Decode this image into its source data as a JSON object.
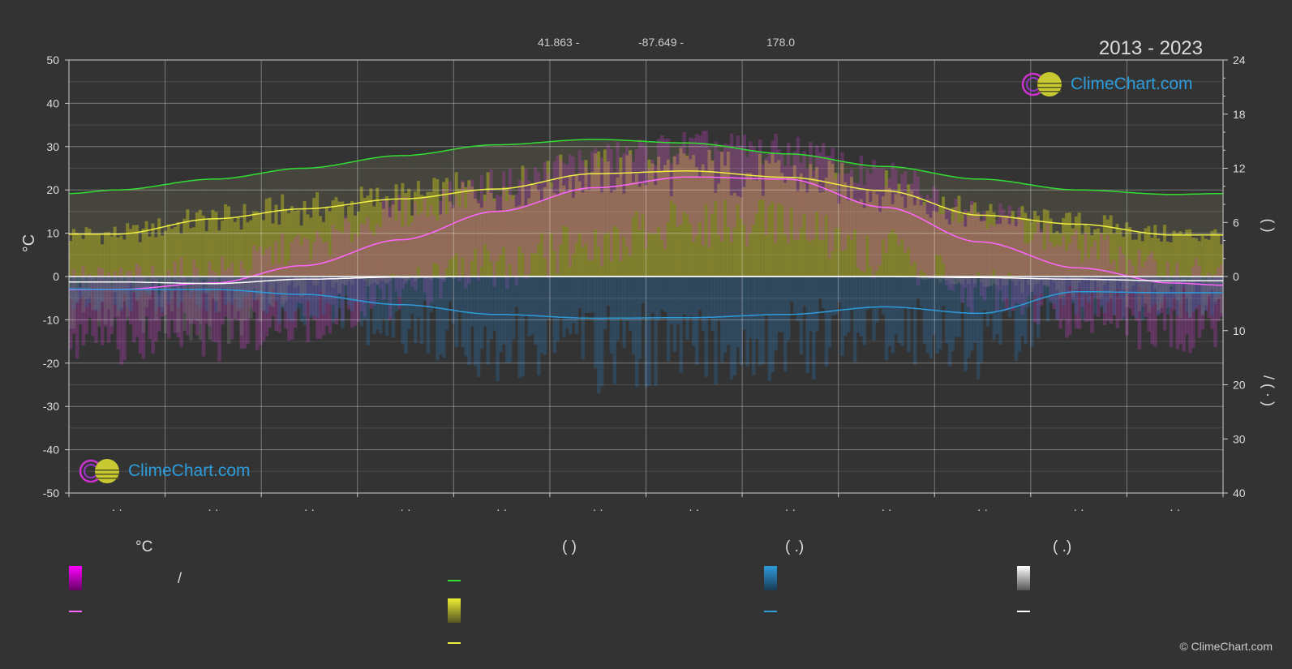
{
  "header": {
    "lat": "41.863 -",
    "lon": "-87.649 -",
    "elev": "178.0",
    "years": "2013 - 2023"
  },
  "brand": {
    "logo_text": "ClimeChart.com",
    "copyright": "© ClimeChart.com"
  },
  "colors": {
    "background": "#333333",
    "daylight": "#33dd33",
    "sunshine": "#eeee44",
    "temp_mean": "#ff66ff",
    "precip": "#2d9cdb",
    "snow": "#ffffff",
    "sunshine_fill": "#8a8a2a",
    "temp_band": "#c040c0",
    "precip_bars": "#2a6aa0",
    "snow_bars": "#777777"
  },
  "legend": {
    "temp_header": "°C",
    "sun_header": "(          )",
    "rain_header": "(   .)",
    "snow_header": "(   .)",
    "slash": "/"
  },
  "chart_data": {
    "type": "area",
    "months": [
      "· ·",
      "· ·",
      "· ·",
      "· ·",
      "· ·",
      "· ·",
      "· ·",
      "· ·",
      "· ·",
      "· ·",
      "· ·",
      "· ·"
    ],
    "y_left": {
      "label": "°C",
      "min": -50,
      "max": 50,
      "ticks": [
        50,
        40,
        30,
        20,
        10,
        0,
        -10,
        -20,
        -30,
        -40,
        -50
      ]
    },
    "y_right_top": {
      "label": "(     )",
      "min": 0,
      "max": 24,
      "ticks": [
        24,
        18,
        12,
        6,
        0
      ]
    },
    "y_right_bottom": {
      "label": "/ (   ·   )",
      "min": 0,
      "max": 40,
      "ticks": [
        10,
        20,
        30,
        40
      ]
    },
    "x_days": [
      0,
      15,
      46,
      74,
      105,
      135,
      166,
      196,
      227,
      258,
      288,
      319,
      349,
      365
    ],
    "series": [
      {
        "key": "daylight",
        "values": [
          9.2,
          9.6,
          10.8,
          12.0,
          13.4,
          14.6,
          15.2,
          14.8,
          13.6,
          12.2,
          10.8,
          9.6,
          9.1,
          9.2
        ]
      },
      {
        "key": "sunshine",
        "values": [
          4.7,
          4.7,
          6.4,
          7.5,
          8.6,
          9.7,
          11.4,
          11.7,
          11.0,
          9.5,
          6.8,
          5.8,
          4.6,
          4.6
        ]
      },
      {
        "key": "temp_mean",
        "values": [
          -3.0,
          -3.0,
          -1.5,
          2.5,
          8.5,
          15.0,
          20.5,
          23.0,
          22.5,
          16.0,
          8.0,
          2.0,
          -1.5,
          -2.0
        ]
      },
      {
        "key": "precip",
        "values": [
          2.3,
          2.4,
          2.4,
          3.3,
          5.2,
          7.0,
          7.7,
          7.6,
          7.0,
          5.6,
          6.8,
          2.8,
          3.0,
          3.0
        ]
      },
      {
        "key": "snow",
        "values": [
          1.0,
          1.0,
          1.3,
          0.5,
          0.1,
          0.0,
          0.0,
          0.0,
          0.0,
          0.0,
          0.2,
          0.5,
          0.8,
          0.8
        ]
      },
      {
        "key": "temp_max",
        "values": [
          -1,
          -1,
          1,
          7,
          15,
          21,
          27,
          30,
          29,
          23,
          15,
          7,
          1,
          0
        ]
      },
      {
        "key": "temp_min",
        "values": [
          -9,
          -9,
          -8,
          -4,
          2,
          8,
          14,
          18,
          18,
          11,
          3,
          -3,
          -7,
          -8
        ]
      }
    ]
  }
}
